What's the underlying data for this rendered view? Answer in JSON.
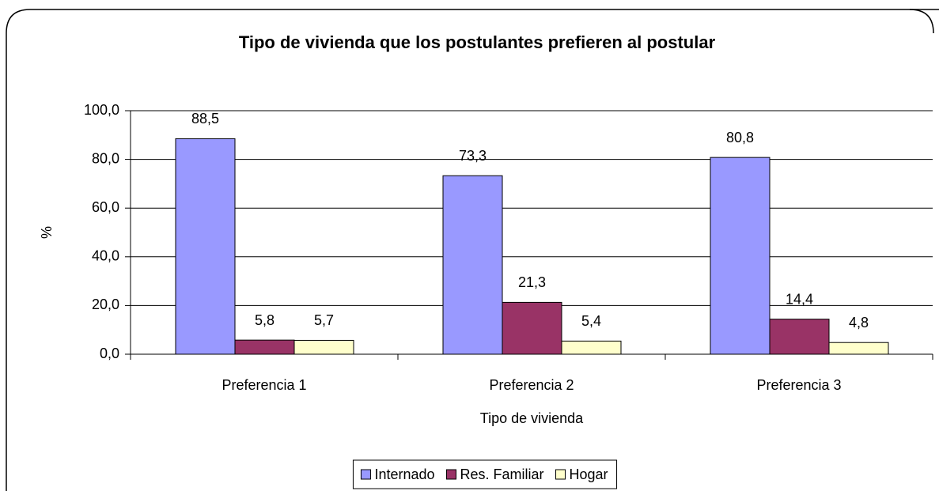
{
  "chart_data": {
    "type": "bar",
    "title": "Tipo de vivienda que los postulantes prefieren al postular",
    "xlabel": "Tipo de vivienda",
    "ylabel": "%",
    "categories": [
      "Preferencia 1",
      "Preferencia 2",
      "Preferencia 3"
    ],
    "series": [
      {
        "name": "Internado",
        "color": "#9999ff",
        "values": [
          88.5,
          73.3,
          80.8
        ],
        "value_labels": [
          "88,5",
          "73,3",
          "80,8"
        ]
      },
      {
        "name": "Res. Familiar",
        "color": "#993366",
        "values": [
          5.8,
          21.3,
          14.4
        ],
        "value_labels": [
          "5,8",
          "21,3",
          "14,4"
        ]
      },
      {
        "name": "Hogar",
        "color": "#ffffcc",
        "values": [
          5.7,
          5.4,
          4.8
        ],
        "value_labels": [
          "5,7",
          "5,4",
          "4,8"
        ]
      }
    ],
    "ylim": [
      0,
      100
    ],
    "yticks": [
      {
        "value": 0,
        "label": "0,0"
      },
      {
        "value": 20,
        "label": "20,0"
      },
      {
        "value": 40,
        "label": "40,0"
      },
      {
        "value": 60,
        "label": "60,0"
      },
      {
        "value": 80,
        "label": "80,0"
      },
      {
        "value": 100,
        "label": "100,0"
      }
    ],
    "grid": true,
    "legend": "bottom"
  }
}
